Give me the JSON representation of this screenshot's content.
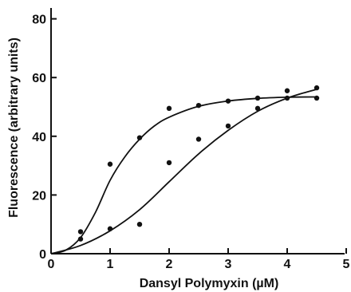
{
  "chart_data": {
    "type": "scatter",
    "xlabel": "Dansyl Polymyxin (µM)",
    "ylabel": "Fluorescence  (arbitrary units)",
    "xlim": [
      0,
      5
    ],
    "ylim": [
      0,
      85
    ],
    "x_ticks": [
      "0",
      "1",
      "2",
      "3",
      "4",
      "5"
    ],
    "y_ticks": [
      "0",
      "20",
      "40",
      "60",
      "80"
    ],
    "grid": false,
    "legend": "none",
    "series": [
      {
        "points": [
          [
            0.5,
            7.5
          ],
          [
            1.0,
            30.5
          ],
          [
            1.5,
            39.5
          ],
          [
            2.0,
            49.5
          ],
          [
            2.5,
            50.5
          ],
          [
            3.0,
            52.0
          ],
          [
            3.5,
            53.0
          ],
          [
            4.0,
            53.0
          ],
          [
            4.5,
            53.0
          ]
        ],
        "curve": [
          [
            0,
            0
          ],
          [
            0.25,
            1.2
          ],
          [
            0.5,
            5.5
          ],
          [
            0.75,
            14
          ],
          [
            1.0,
            25
          ],
          [
            1.25,
            33
          ],
          [
            1.5,
            39
          ],
          [
            1.75,
            43.5
          ],
          [
            2.0,
            46.5
          ],
          [
            2.5,
            50.2
          ],
          [
            3.0,
            52
          ],
          [
            3.5,
            52.9
          ],
          [
            4.0,
            53.3
          ],
          [
            4.5,
            53.4
          ]
        ]
      },
      {
        "points": [
          [
            0.5,
            5.0
          ],
          [
            1.0,
            8.5
          ],
          [
            1.5,
            10.0
          ],
          [
            2.0,
            31.0
          ],
          [
            2.5,
            39.0
          ],
          [
            3.0,
            43.5
          ],
          [
            3.5,
            49.5
          ],
          [
            4.0,
            55.5
          ],
          [
            4.5,
            56.5
          ]
        ],
        "curve": [
          [
            0,
            0
          ],
          [
            0.5,
            2.8
          ],
          [
            1.0,
            7.8
          ],
          [
            1.5,
            15
          ],
          [
            2.0,
            24.5
          ],
          [
            2.5,
            34
          ],
          [
            3.0,
            42
          ],
          [
            3.5,
            48.5
          ],
          [
            4.0,
            53
          ],
          [
            4.5,
            56
          ]
        ]
      }
    ]
  }
}
